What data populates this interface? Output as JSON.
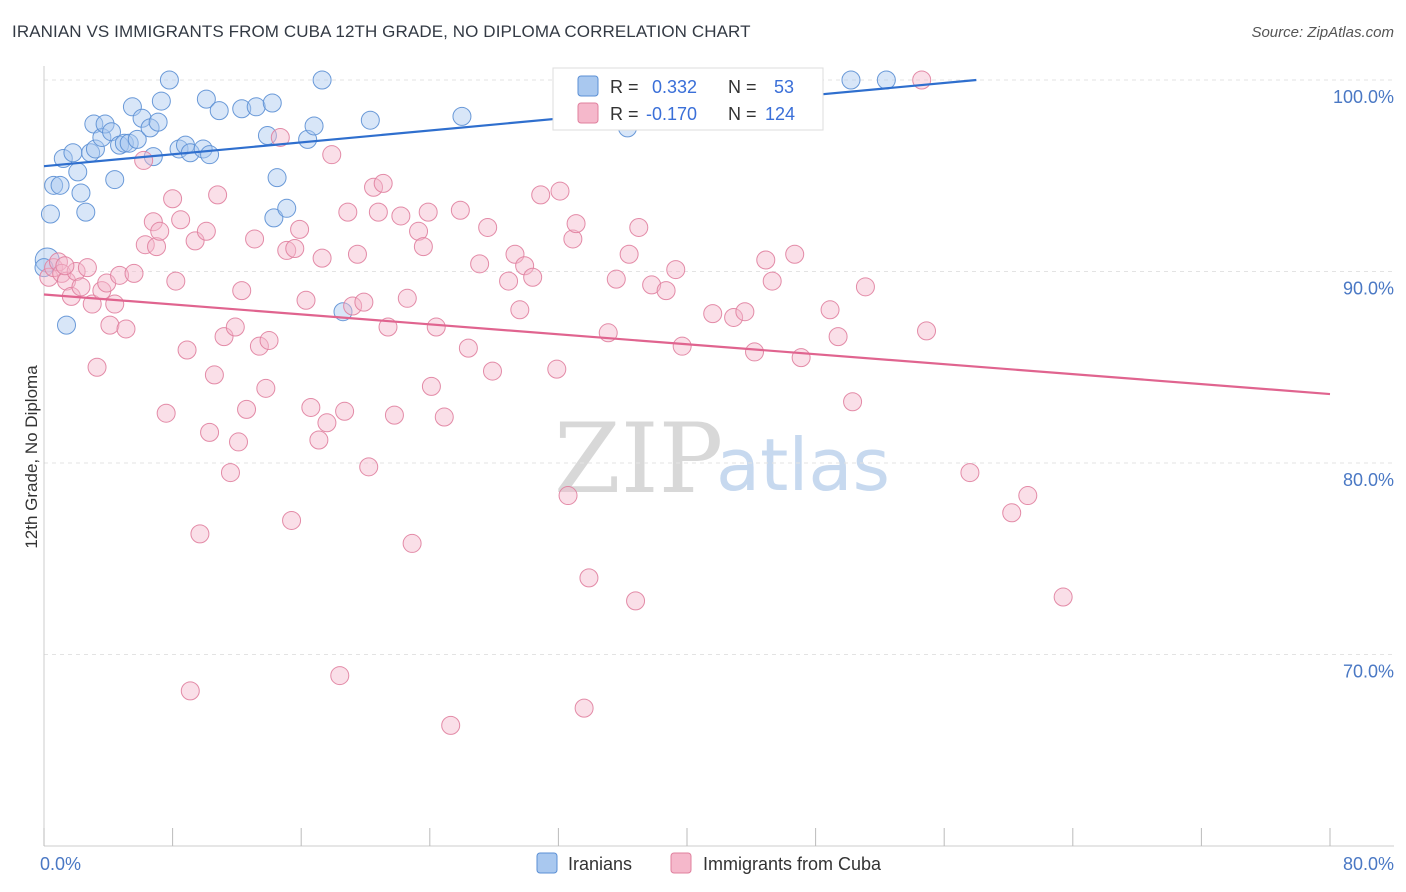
{
  "title": "IRANIAN VS IMMIGRANTS FROM CUBA 12TH GRADE, NO DIPLOMA CORRELATION CHART",
  "source": "Source: ZipAtlas.com",
  "watermark": {
    "part1": "ZIP",
    "part2": "atlas"
  },
  "legend_box": {
    "rows": [
      {
        "r_label": "R =",
        "r_value": "0.332",
        "n_label": "N =",
        "n_value": "53",
        "color": "#a9c8ef"
      },
      {
        "r_label": "R =",
        "r_value": "-0.170",
        "n_label": "N =",
        "n_value": "124",
        "color": "#f5b8cb"
      }
    ]
  },
  "bottom_legend": [
    {
      "label": "Iranians",
      "color": "#a9c8ef"
    },
    {
      "label": "Immigrants from Cuba",
      "color": "#f5b8cb"
    }
  ],
  "chart_data": {
    "type": "scatter",
    "title": "IRANIAN VS IMMIGRANTS FROM CUBA 12TH GRADE, NO DIPLOMA CORRELATION CHART",
    "xlabel": "",
    "ylabel": "12th Grade, No Diploma",
    "xlim": [
      0,
      80
    ],
    "ylim": [
      60,
      100
    ],
    "x_tick_labels": [
      {
        "value": 0,
        "label": "0.0%"
      },
      {
        "value": 80,
        "label": "80.0%"
      }
    ],
    "y_tick_labels": [
      {
        "value": 100,
        "label": "100.0%"
      },
      {
        "value": 90,
        "label": "90.0%"
      },
      {
        "value": 80,
        "label": "80.0%"
      },
      {
        "value": 70,
        "label": "70.0%"
      }
    ],
    "grid": true,
    "legend_position": "top-center",
    "series": [
      {
        "name": "Iranians",
        "color": "#a9c8ef",
        "stroke": "#5b8fd4",
        "trend_color": "#2f6fce",
        "trend": {
          "x": [
            0.0,
            58.0
          ],
          "y": [
            95.5,
            100.0
          ]
        },
        "points": [
          [
            0.2,
            90.6
          ],
          [
            0.4,
            93.0
          ],
          [
            0.6,
            94.5
          ],
          [
            1.0,
            94.5
          ],
          [
            1.2,
            95.9
          ],
          [
            1.4,
            87.2
          ],
          [
            1.8,
            96.2
          ],
          [
            2.1,
            95.2
          ],
          [
            2.3,
            94.1
          ],
          [
            2.6,
            93.1
          ],
          [
            2.9,
            96.2
          ],
          [
            3.1,
            97.7
          ],
          [
            3.2,
            96.4
          ],
          [
            3.6,
            97.0
          ],
          [
            3.8,
            97.7
          ],
          [
            4.2,
            97.3
          ],
          [
            4.4,
            94.8
          ],
          [
            4.7,
            96.6
          ],
          [
            5.0,
            96.7
          ],
          [
            5.3,
            96.7
          ],
          [
            5.5,
            98.6
          ],
          [
            5.8,
            96.9
          ],
          [
            6.1,
            98.0
          ],
          [
            6.6,
            97.5
          ],
          [
            6.8,
            96.0
          ],
          [
            7.1,
            97.8
          ],
          [
            7.3,
            98.9
          ],
          [
            7.8,
            100.0
          ],
          [
            8.4,
            96.4
          ],
          [
            8.8,
            96.6
          ],
          [
            9.1,
            96.2
          ],
          [
            9.9,
            96.4
          ],
          [
            10.1,
            99.0
          ],
          [
            10.3,
            96.1
          ],
          [
            10.9,
            98.4
          ],
          [
            12.3,
            98.5
          ],
          [
            13.2,
            98.6
          ],
          [
            13.9,
            97.1
          ],
          [
            14.2,
            98.8
          ],
          [
            14.5,
            94.9
          ],
          [
            14.3,
            92.8
          ],
          [
            15.1,
            93.3
          ],
          [
            16.4,
            96.9
          ],
          [
            16.8,
            97.6
          ],
          [
            17.3,
            100.0
          ],
          [
            18.6,
            87.9
          ],
          [
            20.3,
            97.9
          ],
          [
            26.0,
            98.1
          ],
          [
            35.8,
            100.0
          ],
          [
            36.3,
            97.5
          ],
          [
            50.2,
            100.0
          ],
          [
            52.4,
            100.0
          ],
          [
            0.0,
            90.2
          ]
        ]
      },
      {
        "name": "Immigrants from Cuba",
        "color": "#f5b8cb",
        "stroke": "#e0809e",
        "trend_color": "#e0648f",
        "trend": {
          "x": [
            0.0,
            80.0
          ],
          "y": [
            88.8,
            83.6
          ]
        },
        "points": [
          [
            0.3,
            89.7
          ],
          [
            0.6,
            90.2
          ],
          [
            0.9,
            90.5
          ],
          [
            1.1,
            89.9
          ],
          [
            1.4,
            89.5
          ],
          [
            1.7,
            88.7
          ],
          [
            2.0,
            90.0
          ],
          [
            2.3,
            89.2
          ],
          [
            2.7,
            90.2
          ],
          [
            3.0,
            88.3
          ],
          [
            3.3,
            85.0
          ],
          [
            3.6,
            89.0
          ],
          [
            3.9,
            89.4
          ],
          [
            4.1,
            87.2
          ],
          [
            4.4,
            88.3
          ],
          [
            4.7,
            89.8
          ],
          [
            5.1,
            87.0
          ],
          [
            5.6,
            89.9
          ],
          [
            6.2,
            95.8
          ],
          [
            6.3,
            91.4
          ],
          [
            6.8,
            92.6
          ],
          [
            7.0,
            91.3
          ],
          [
            7.2,
            92.1
          ],
          [
            7.6,
            82.6
          ],
          [
            8.0,
            93.8
          ],
          [
            8.2,
            89.5
          ],
          [
            8.5,
            92.7
          ],
          [
            8.9,
            85.9
          ],
          [
            9.1,
            68.1
          ],
          [
            9.4,
            91.6
          ],
          [
            9.7,
            76.3
          ],
          [
            10.1,
            92.1
          ],
          [
            10.3,
            81.6
          ],
          [
            10.6,
            84.6
          ],
          [
            10.8,
            94.0
          ],
          [
            11.2,
            86.6
          ],
          [
            11.6,
            79.5
          ],
          [
            11.9,
            87.1
          ],
          [
            12.1,
            81.1
          ],
          [
            12.3,
            89.0
          ],
          [
            12.6,
            82.8
          ],
          [
            13.1,
            91.7
          ],
          [
            13.4,
            86.1
          ],
          [
            13.8,
            83.9
          ],
          [
            14.0,
            86.4
          ],
          [
            14.7,
            97.0
          ],
          [
            15.1,
            91.1
          ],
          [
            15.4,
            77.0
          ],
          [
            15.6,
            91.2
          ],
          [
            15.9,
            92.2
          ],
          [
            16.3,
            88.5
          ],
          [
            16.6,
            82.9
          ],
          [
            17.1,
            81.2
          ],
          [
            17.3,
            90.7
          ],
          [
            17.6,
            82.1
          ],
          [
            17.9,
            96.1
          ],
          [
            18.4,
            68.9
          ],
          [
            18.7,
            82.7
          ],
          [
            18.9,
            93.1
          ],
          [
            19.2,
            88.2
          ],
          [
            19.5,
            90.9
          ],
          [
            19.9,
            88.4
          ],
          [
            20.2,
            79.8
          ],
          [
            20.5,
            94.4
          ],
          [
            20.8,
            93.1
          ],
          [
            21.1,
            94.6
          ],
          [
            21.4,
            87.1
          ],
          [
            21.8,
            82.5
          ],
          [
            22.2,
            92.9
          ],
          [
            22.6,
            88.6
          ],
          [
            22.9,
            75.8
          ],
          [
            23.3,
            92.1
          ],
          [
            23.6,
            91.3
          ],
          [
            23.9,
            93.1
          ],
          [
            24.1,
            84.0
          ],
          [
            24.4,
            87.1
          ],
          [
            24.9,
            82.4
          ],
          [
            25.3,
            66.3
          ],
          [
            25.9,
            93.2
          ],
          [
            26.4,
            86.0
          ],
          [
            27.1,
            90.4
          ],
          [
            27.6,
            92.3
          ],
          [
            27.9,
            84.8
          ],
          [
            28.9,
            89.5
          ],
          [
            29.3,
            90.9
          ],
          [
            29.6,
            88.0
          ],
          [
            29.9,
            90.3
          ],
          [
            30.4,
            89.7
          ],
          [
            30.9,
            94.0
          ],
          [
            31.9,
            84.9
          ],
          [
            32.1,
            94.2
          ],
          [
            32.6,
            78.3
          ],
          [
            32.9,
            91.7
          ],
          [
            33.1,
            92.5
          ],
          [
            33.6,
            67.2
          ],
          [
            33.9,
            74.0
          ],
          [
            35.1,
            86.8
          ],
          [
            35.6,
            89.6
          ],
          [
            36.4,
            90.9
          ],
          [
            36.8,
            72.8
          ],
          [
            37.0,
            92.3
          ],
          [
            37.8,
            89.3
          ],
          [
            38.7,
            89.0
          ],
          [
            39.3,
            90.1
          ],
          [
            39.7,
            86.1
          ],
          [
            41.6,
            87.8
          ],
          [
            42.9,
            87.6
          ],
          [
            43.6,
            87.9
          ],
          [
            44.2,
            85.8
          ],
          [
            44.9,
            90.6
          ],
          [
            45.3,
            89.5
          ],
          [
            46.7,
            90.9
          ],
          [
            47.1,
            85.5
          ],
          [
            48.9,
            88.0
          ],
          [
            49.4,
            86.6
          ],
          [
            50.3,
            83.2
          ],
          [
            51.1,
            89.2
          ],
          [
            54.6,
            100.0
          ],
          [
            54.9,
            86.9
          ],
          [
            57.6,
            79.5
          ],
          [
            60.2,
            77.4
          ],
          [
            61.2,
            78.3
          ],
          [
            63.4,
            73.0
          ],
          [
            1.3,
            90.3
          ]
        ]
      }
    ]
  }
}
